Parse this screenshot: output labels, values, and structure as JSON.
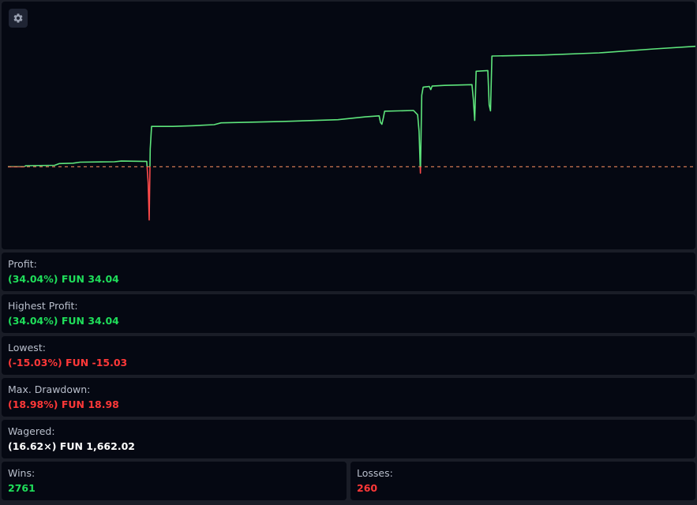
{
  "settings": {
    "icon": "gear-icon"
  },
  "stats": {
    "profit": {
      "label": "Profit:",
      "value": "(34.04%) FUN 34.04"
    },
    "highest_profit": {
      "label": "Highest Profit:",
      "value": "(34.04%) FUN 34.04"
    },
    "lowest": {
      "label": "Lowest:",
      "value": "(-15.03%) FUN -15.03"
    },
    "max_drawdown": {
      "label": "Max. Drawdown:",
      "value": "(18.98%) FUN 18.98"
    },
    "wagered": {
      "label": "Wagered:",
      "value": "(16.62×) FUN 1,662.02"
    },
    "wins": {
      "label": "Wins:",
      "value": "2761"
    },
    "losses": {
      "label": "Losses:",
      "value": "260"
    }
  },
  "colors": {
    "positive": "#1fde5a",
    "negative": "#ff3838",
    "line_positive": "#5ee57c",
    "line_negative": "#ff4b4b",
    "baseline": "#e8835a",
    "panel_bg": "#050812",
    "page_bg": "#1a1d27"
  },
  "chart_data": {
    "type": "line",
    "baseline": 0,
    "xlim": [
      0,
      100
    ],
    "ylim": [
      -18,
      40
    ],
    "grid": false,
    "points": [
      [
        0,
        0
      ],
      [
        2.4,
        0
      ],
      [
        2.6,
        0.3
      ],
      [
        6.8,
        0.4
      ],
      [
        7.5,
        0.9
      ],
      [
        9.5,
        1.0
      ],
      [
        10.5,
        1.3
      ],
      [
        15.5,
        1.4
      ],
      [
        16.5,
        1.6
      ],
      [
        20.2,
        1.5
      ],
      [
        20.4,
        -4.5
      ],
      [
        20.55,
        -15.03
      ],
      [
        20.7,
        5.0
      ],
      [
        20.9,
        11.4
      ],
      [
        24,
        11.4
      ],
      [
        27,
        11.6
      ],
      [
        30,
        11.9
      ],
      [
        31,
        12.4
      ],
      [
        40,
        12.8
      ],
      [
        48,
        13.3
      ],
      [
        52,
        14.1
      ],
      [
        54,
        14.4
      ],
      [
        54.2,
        12.5
      ],
      [
        54.4,
        12.0
      ],
      [
        54.6,
        13.8
      ],
      [
        54.8,
        15.7
      ],
      [
        59,
        15.9
      ],
      [
        59.6,
        14.7
      ],
      [
        59.8,
        10.0
      ],
      [
        60.0,
        -1.8
      ],
      [
        60.2,
        20.2
      ],
      [
        60.4,
        22.5
      ],
      [
        61.3,
        22.7
      ],
      [
        61.5,
        21.8
      ],
      [
        61.7,
        22.8
      ],
      [
        63.5,
        23.0
      ],
      [
        67.5,
        23.2
      ],
      [
        67.7,
        19.0
      ],
      [
        67.9,
        13.1
      ],
      [
        68.1,
        27.0
      ],
      [
        69.8,
        27.2
      ],
      [
        70.0,
        17.5
      ],
      [
        70.2,
        15.8
      ],
      [
        70.4,
        31.3
      ],
      [
        78,
        31.6
      ],
      [
        86,
        32.2
      ],
      [
        94,
        33.3
      ],
      [
        100,
        34.04
      ]
    ]
  }
}
